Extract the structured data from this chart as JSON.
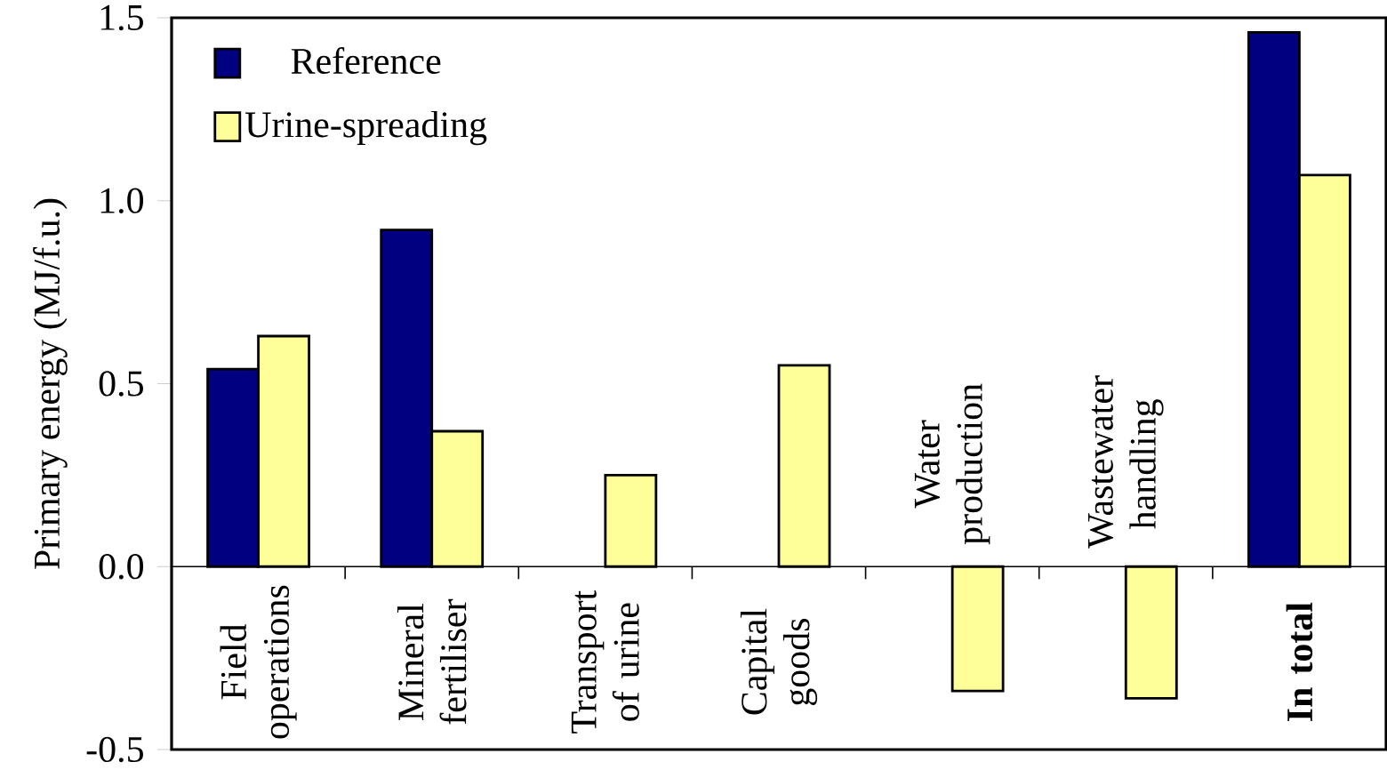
{
  "chart_data": {
    "type": "bar",
    "ylabel": "Primary energy (MJ/f.u.)",
    "categories": [
      "Field operations",
      "Mineral fertiliser",
      "Transport of urine",
      "Capital goods",
      "Water production",
      "Wastewater handling",
      "**In total**"
    ],
    "series": [
      {
        "name": "Reference",
        "color": "#000080",
        "values": [
          0.54,
          0.92,
          null,
          null,
          null,
          null,
          1.46
        ]
      },
      {
        "name": "Urine-spreading",
        "color": "#ffff99",
        "values": [
          0.63,
          0.37,
          0.25,
          0.55,
          -0.34,
          -0.36,
          1.07
        ]
      }
    ],
    "ylim": [
      -0.5,
      1.5
    ],
    "yticks": [
      -0.5,
      {
        "value": 0,
        "label": "0.0"
      },
      0.5,
      {
        "value": 1,
        "label": "1.0"
      },
      1.5
    ],
    "legend": "top left"
  }
}
